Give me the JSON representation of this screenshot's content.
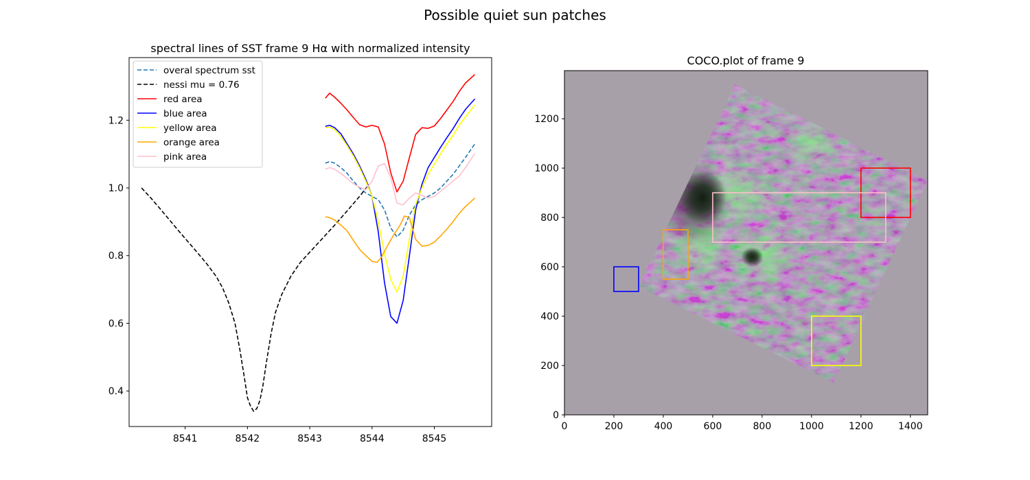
{
  "figure": {
    "suptitle": "Possible quiet sun patches"
  },
  "chart_data": [
    {
      "type": "line",
      "title": "spectral lines of SST frame 9 Hα with normalized intensity",
      "xlabel": "",
      "ylabel": "",
      "xlim": [
        8540.1,
        8545.92
      ],
      "ylim": [
        0.295,
        1.385
      ],
      "xticks": [
        8541,
        8542,
        8543,
        8544,
        8545
      ],
      "yticks": [
        0.4,
        0.6,
        0.8,
        1.0,
        1.2
      ],
      "xtick_labels": [
        "8541",
        "8542",
        "8543",
        "8544",
        "8545"
      ],
      "ytick_labels": [
        "0.4",
        "0.6",
        "0.8",
        "1.0",
        "1.2"
      ],
      "legend_position": "upper-left",
      "grid": false,
      "series": [
        {
          "name": "overal spectrum sst",
          "color": "#1f77b4",
          "dash": "dashed",
          "x": [
            8543.25,
            8543.32,
            8543.4,
            8543.5,
            8543.6,
            8543.7,
            8543.8,
            8543.9,
            8544.0,
            8544.1,
            8544.2,
            8544.3,
            8544.4,
            8544.5,
            8544.6,
            8544.7,
            8544.8,
            8544.9,
            8545.0,
            8545.1,
            8545.2,
            8545.3,
            8545.4,
            8545.5,
            8545.65
          ],
          "y": [
            1.073,
            1.078,
            1.073,
            1.06,
            1.043,
            1.02,
            1.0,
            0.985,
            0.975,
            0.965,
            0.935,
            0.882,
            0.855,
            0.875,
            0.92,
            0.95,
            0.965,
            0.975,
            0.985,
            1.0,
            1.02,
            1.04,
            1.065,
            1.09,
            1.13
          ]
        },
        {
          "name": "nessi mu = 0.76",
          "color": "#000000",
          "dash": "dashed",
          "x": [
            8540.3,
            8540.45,
            8540.6,
            8540.75,
            8540.9,
            8541.05,
            8541.2,
            8541.35,
            8541.5,
            8541.6,
            8541.7,
            8541.8,
            8541.88,
            8541.95,
            8542.0,
            8542.05,
            8542.1,
            8542.15,
            8542.2,
            8542.25,
            8542.3,
            8542.38,
            8542.45,
            8542.55,
            8542.7,
            8542.85,
            8543.0,
            8543.2,
            8543.4,
            8543.6,
            8543.8,
            8543.95
          ],
          "y": [
            1.0,
            0.97,
            0.938,
            0.905,
            0.872,
            0.84,
            0.808,
            0.775,
            0.738,
            0.705,
            0.66,
            0.6,
            0.52,
            0.44,
            0.38,
            0.355,
            0.34,
            0.348,
            0.372,
            0.418,
            0.48,
            0.57,
            0.632,
            0.685,
            0.74,
            0.78,
            0.81,
            0.85,
            0.89,
            0.932,
            0.975,
            1.01
          ]
        },
        {
          "name": "red area",
          "color": "#ff0000",
          "dash": "solid",
          "x": [
            8543.25,
            8543.32,
            8543.4,
            8543.5,
            8543.6,
            8543.7,
            8543.8,
            8543.9,
            8544.0,
            8544.1,
            8544.2,
            8544.3,
            8544.4,
            8544.5,
            8544.6,
            8544.7,
            8544.8,
            8544.9,
            8545.0,
            8545.1,
            8545.2,
            8545.3,
            8545.4,
            8545.5,
            8545.65
          ],
          "y": [
            1.265,
            1.28,
            1.268,
            1.25,
            1.23,
            1.208,
            1.187,
            1.18,
            1.185,
            1.18,
            1.13,
            1.045,
            0.988,
            1.02,
            1.09,
            1.158,
            1.178,
            1.176,
            1.183,
            1.205,
            1.23,
            1.255,
            1.285,
            1.31,
            1.335
          ]
        },
        {
          "name": "blue area",
          "color": "#0000ff",
          "dash": "solid",
          "x": [
            8543.25,
            8543.32,
            8543.4,
            8543.5,
            8543.6,
            8543.7,
            8543.8,
            8543.9,
            8544.0,
            8544.1,
            8544.2,
            8544.3,
            8544.4,
            8544.5,
            8544.6,
            8544.7,
            8544.8,
            8544.9,
            8545.0,
            8545.1,
            8545.2,
            8545.3,
            8545.4,
            8545.5,
            8545.65
          ],
          "y": [
            1.182,
            1.185,
            1.178,
            1.16,
            1.13,
            1.1,
            1.065,
            1.025,
            0.975,
            0.87,
            0.72,
            0.62,
            0.6,
            0.668,
            0.8,
            0.935,
            1.01,
            1.06,
            1.09,
            1.12,
            1.148,
            1.175,
            1.205,
            1.232,
            1.263
          ]
        },
        {
          "name": "yellow area",
          "color": "#ffff00",
          "dash": "solid",
          "x": [
            8543.25,
            8543.32,
            8543.4,
            8543.5,
            8543.6,
            8543.7,
            8543.8,
            8543.9,
            8544.0,
            8544.1,
            8544.2,
            8544.3,
            8544.4,
            8544.5,
            8544.6,
            8544.7,
            8544.8,
            8544.9,
            8545.0,
            8545.1,
            8545.2,
            8545.3,
            8545.4,
            8545.5,
            8545.65
          ],
          "y": [
            1.178,
            1.18,
            1.172,
            1.152,
            1.125,
            1.095,
            1.06,
            1.02,
            0.975,
            0.9,
            0.805,
            0.73,
            0.692,
            0.74,
            0.85,
            0.95,
            1.0,
            1.04,
            1.07,
            1.1,
            1.13,
            1.155,
            1.185,
            1.21,
            1.245
          ]
        },
        {
          "name": "orange area",
          "color": "#ffa500",
          "dash": "solid",
          "x": [
            8543.25,
            8543.32,
            8543.4,
            8543.5,
            8543.6,
            8543.7,
            8543.8,
            8543.9,
            8544.0,
            8544.08,
            8544.15,
            8544.25,
            8544.35,
            8544.45,
            8544.52,
            8544.6,
            8544.7,
            8544.8,
            8544.9,
            8545.0,
            8545.1,
            8545.2,
            8545.3,
            8545.4,
            8545.5,
            8545.65
          ],
          "y": [
            0.915,
            0.912,
            0.905,
            0.89,
            0.873,
            0.845,
            0.818,
            0.8,
            0.783,
            0.78,
            0.795,
            0.83,
            0.862,
            0.89,
            0.917,
            0.912,
            0.848,
            0.828,
            0.83,
            0.84,
            0.858,
            0.878,
            0.9,
            0.925,
            0.945,
            0.97
          ]
        },
        {
          "name": "pink area",
          "color": "#ffc0cb",
          "dash": "solid",
          "x": [
            8543.25,
            8543.32,
            8543.4,
            8543.5,
            8543.6,
            8543.7,
            8543.8,
            8543.9,
            8544.0,
            8544.1,
            8544.2,
            8544.3,
            8544.4,
            8544.5,
            8544.6,
            8544.7,
            8544.8,
            8544.9,
            8545.0,
            8545.1,
            8545.2,
            8545.3,
            8545.4,
            8545.5,
            8545.65
          ],
          "y": [
            1.055,
            1.06,
            1.055,
            1.043,
            1.028,
            1.012,
            1.002,
            0.995,
            1.02,
            1.065,
            1.072,
            1.03,
            0.955,
            0.95,
            0.97,
            0.985,
            0.978,
            0.97,
            0.975,
            0.99,
            1.005,
            1.02,
            1.035,
            1.06,
            1.102
          ]
        }
      ]
    },
    {
      "type": "image",
      "title": "COCO.plot of frame 9",
      "xlim": [
        0,
        1470
      ],
      "ylim": [
        0,
        1395
      ],
      "xticks": [
        0,
        200,
        400,
        600,
        800,
        1000,
        1200,
        1400
      ],
      "yticks": [
        0,
        200,
        400,
        600,
        800,
        1000,
        1200
      ],
      "xtick_labels": [
        "0",
        "200",
        "400",
        "600",
        "800",
        "1000",
        "1200",
        "1400"
      ],
      "ytick_labels": [
        "0",
        "200",
        "400",
        "600",
        "800",
        "1000",
        "1200"
      ],
      "background_color": "#a8a0a8",
      "image_rotated_corners": [
        [
          690,
          1340
        ],
        [
          1470,
          950
        ],
        [
          1090,
          130
        ],
        [
          300,
          520
        ]
      ],
      "rectangles": [
        {
          "name": "red area",
          "color": "#ff0000",
          "x0": 1200,
          "x1": 1400,
          "y0": 800,
          "y1": 1000
        },
        {
          "name": "blue area",
          "color": "#0000ff",
          "x0": 200,
          "x1": 300,
          "y0": 500,
          "y1": 600
        },
        {
          "name": "yellow area",
          "color": "#ffff00",
          "x0": 1000,
          "x1": 1200,
          "y0": 200,
          "y1": 400
        },
        {
          "name": "orange area",
          "color": "#ffa500",
          "x0": 400,
          "x1": 500,
          "y0": 550,
          "y1": 750
        },
        {
          "name": "pink area",
          "color": "#ffc0cb",
          "x0": 600,
          "x1": 1300,
          "y0": 700,
          "y1": 900
        }
      ]
    }
  ]
}
